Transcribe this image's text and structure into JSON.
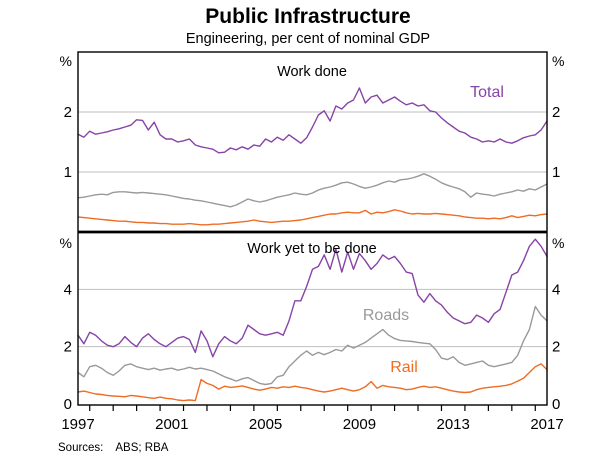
{
  "header": {
    "title": "Public Infrastructure",
    "subtitle": "Engineering, per cent of nominal GDP"
  },
  "footer": {
    "sources_label": "Sources:",
    "sources_value": "ABS; RBA"
  },
  "colors": {
    "purple": "#8743A8",
    "grey": "#999999",
    "orange": "#F06C23",
    "gridline": "#BFBFBF",
    "axis": "#000000"
  },
  "chart_data": {
    "type": "line",
    "x": {
      "start": 1997,
      "end": 2017,
      "step": 0.25,
      "tick_every_years": 1,
      "labels": [
        "1997",
        "2001",
        "2005",
        "2009",
        "2013",
        "2017"
      ],
      "label_years": [
        1997,
        2001,
        2005,
        2009,
        2013,
        2017
      ]
    },
    "panels": [
      {
        "id": "work-done",
        "title": "Work done",
        "unit": "%",
        "ylim": [
          0,
          3
        ],
        "gridlines": [
          1,
          2
        ],
        "yticks": [
          {
            "v": 1,
            "l": "1"
          },
          {
            "v": 2,
            "l": "2"
          }
        ],
        "legend_position": "in-plot-labels",
        "series": [
          {
            "id": "total",
            "label": "Total",
            "color_key": "purple",
            "values": [
              1.63,
              1.58,
              1.68,
              1.63,
              1.65,
              1.67,
              1.7,
              1.72,
              1.75,
              1.78,
              1.87,
              1.86,
              1.7,
              1.83,
              1.62,
              1.55,
              1.55,
              1.5,
              1.52,
              1.55,
              1.45,
              1.42,
              1.4,
              1.38,
              1.32,
              1.33,
              1.4,
              1.37,
              1.42,
              1.38,
              1.45,
              1.43,
              1.55,
              1.5,
              1.58,
              1.53,
              1.62,
              1.55,
              1.48,
              1.57,
              1.75,
              1.95,
              2.02,
              1.85,
              2.1,
              2.05,
              2.15,
              2.2,
              2.4,
              2.15,
              2.25,
              2.28,
              2.15,
              2.2,
              2.25,
              2.18,
              2.12,
              2.15,
              2.1,
              2.12,
              2.02,
              2.0,
              1.9,
              1.82,
              1.75,
              1.68,
              1.65,
              1.58,
              1.55,
              1.5,
              1.52,
              1.5,
              1.55,
              1.5,
              1.48,
              1.52,
              1.57,
              1.6,
              1.62,
              1.7,
              1.85
            ]
          },
          {
            "id": "grey-series",
            "label": null,
            "color_key": "grey",
            "values": [
              0.57,
              0.58,
              0.6,
              0.62,
              0.63,
              0.62,
              0.66,
              0.67,
              0.67,
              0.66,
              0.65,
              0.66,
              0.65,
              0.64,
              0.63,
              0.62,
              0.6,
              0.58,
              0.56,
              0.55,
              0.53,
              0.52,
              0.5,
              0.48,
              0.46,
              0.44,
              0.42,
              0.45,
              0.5,
              0.55,
              0.52,
              0.5,
              0.52,
              0.55,
              0.58,
              0.6,
              0.62,
              0.65,
              0.63,
              0.62,
              0.65,
              0.7,
              0.73,
              0.75,
              0.78,
              0.82,
              0.83,
              0.8,
              0.76,
              0.73,
              0.75,
              0.78,
              0.82,
              0.85,
              0.83,
              0.87,
              0.88,
              0.9,
              0.93,
              0.97,
              0.93,
              0.88,
              0.82,
              0.78,
              0.75,
              0.72,
              0.67,
              0.58,
              0.65,
              0.63,
              0.62,
              0.6,
              0.63,
              0.65,
              0.67,
              0.7,
              0.68,
              0.72,
              0.7,
              0.75,
              0.8
            ]
          },
          {
            "id": "orange-series",
            "label": null,
            "color_key": "orange",
            "values": [
              0.25,
              0.24,
              0.23,
              0.22,
              0.21,
              0.2,
              0.19,
              0.18,
              0.18,
              0.17,
              0.16,
              0.16,
              0.15,
              0.15,
              0.14,
              0.14,
              0.13,
              0.13,
              0.13,
              0.14,
              0.13,
              0.12,
              0.12,
              0.13,
              0.13,
              0.14,
              0.15,
              0.16,
              0.17,
              0.18,
              0.2,
              0.18,
              0.17,
              0.16,
              0.17,
              0.18,
              0.18,
              0.19,
              0.2,
              0.22,
              0.24,
              0.26,
              0.28,
              0.3,
              0.3,
              0.32,
              0.33,
              0.32,
              0.32,
              0.36,
              0.3,
              0.33,
              0.32,
              0.34,
              0.37,
              0.35,
              0.32,
              0.3,
              0.31,
              0.3,
              0.3,
              0.31,
              0.3,
              0.29,
              0.28,
              0.27,
              0.25,
              0.24,
              0.23,
              0.23,
              0.22,
              0.23,
              0.22,
              0.24,
              0.27,
              0.24,
              0.26,
              0.28,
              0.27,
              0.29,
              0.3
            ]
          }
        ]
      },
      {
        "id": "work-yet-to-be-done",
        "title": "Work yet to be done",
        "unit": "%",
        "ylim": [
          0,
          6
        ],
        "gridlines": [
          2,
          4
        ],
        "yticks": [
          {
            "v": 0,
            "l": "0"
          },
          {
            "v": 2,
            "l": "2"
          },
          {
            "v": 4,
            "l": "4"
          }
        ],
        "legend_position": "in-plot-labels",
        "series": [
          {
            "id": "total-yet",
            "label": null,
            "color_key": "purple",
            "values": [
              2.4,
              2.1,
              2.5,
              2.4,
              2.2,
              2.05,
              2.0,
              2.1,
              2.35,
              2.15,
              2.0,
              2.3,
              2.45,
              2.25,
              2.1,
              2.0,
              2.15,
              2.3,
              2.35,
              2.25,
              1.8,
              2.55,
              2.2,
              1.65,
              2.1,
              2.35,
              2.2,
              2.1,
              2.3,
              2.75,
              2.6,
              2.45,
              2.4,
              2.45,
              2.5,
              2.4,
              2.9,
              3.6,
              3.6,
              4.1,
              4.7,
              4.8,
              5.2,
              4.7,
              5.4,
              4.6,
              5.3,
              4.7,
              5.25,
              5.0,
              4.7,
              4.9,
              5.2,
              5.05,
              5.15,
              4.9,
              4.6,
              4.55,
              3.8,
              3.55,
              3.85,
              3.6,
              3.45,
              3.2,
              3.0,
              2.9,
              2.8,
              2.85,
              3.1,
              3.0,
              2.85,
              3.15,
              3.3,
              3.9,
              4.5,
              4.6,
              5.0,
              5.5,
              5.75,
              5.5,
              5.15
            ]
          },
          {
            "id": "roads",
            "label": "Roads",
            "color_key": "grey",
            "values": [
              1.1,
              0.95,
              1.3,
              1.35,
              1.25,
              1.1,
              1.0,
              1.15,
              1.35,
              1.4,
              1.3,
              1.25,
              1.2,
              1.25,
              1.18,
              1.22,
              1.25,
              1.18,
              1.22,
              1.28,
              1.22,
              1.25,
              1.2,
              1.15,
              1.05,
              0.95,
              0.88,
              0.8,
              0.88,
              0.92,
              0.82,
              0.72,
              0.68,
              0.72,
              0.95,
              1.0,
              1.3,
              1.5,
              1.7,
              1.85,
              1.7,
              1.8,
              1.72,
              1.8,
              1.9,
              1.85,
              2.05,
              1.95,
              2.05,
              2.15,
              2.3,
              2.45,
              2.6,
              2.4,
              2.28,
              2.22,
              2.2,
              2.18,
              2.15,
              2.12,
              2.1,
              1.9,
              1.6,
              1.55,
              1.65,
              1.45,
              1.35,
              1.4,
              1.45,
              1.5,
              1.35,
              1.3,
              1.35,
              1.4,
              1.45,
              1.7,
              2.2,
              2.6,
              3.4,
              3.1,
              2.9
            ]
          },
          {
            "id": "rail",
            "label": "Rail",
            "color_key": "orange",
            "values": [
              0.42,
              0.45,
              0.4,
              0.35,
              0.33,
              0.3,
              0.28,
              0.27,
              0.25,
              0.3,
              0.28,
              0.25,
              0.22,
              0.2,
              0.24,
              0.2,
              0.18,
              0.14,
              0.12,
              0.14,
              0.12,
              0.85,
              0.72,
              0.65,
              0.52,
              0.62,
              0.58,
              0.6,
              0.63,
              0.58,
              0.52,
              0.48,
              0.52,
              0.58,
              0.55,
              0.6,
              0.58,
              0.62,
              0.58,
              0.55,
              0.5,
              0.45,
              0.42,
              0.45,
              0.5,
              0.55,
              0.5,
              0.45,
              0.5,
              0.6,
              0.78,
              0.55,
              0.65,
              0.6,
              0.58,
              0.55,
              0.5,
              0.52,
              0.58,
              0.62,
              0.58,
              0.6,
              0.55,
              0.5,
              0.45,
              0.42,
              0.4,
              0.42,
              0.5,
              0.55,
              0.58,
              0.6,
              0.62,
              0.65,
              0.7,
              0.8,
              0.9,
              1.1,
              1.3,
              1.4,
              1.2
            ]
          }
        ]
      }
    ]
  }
}
